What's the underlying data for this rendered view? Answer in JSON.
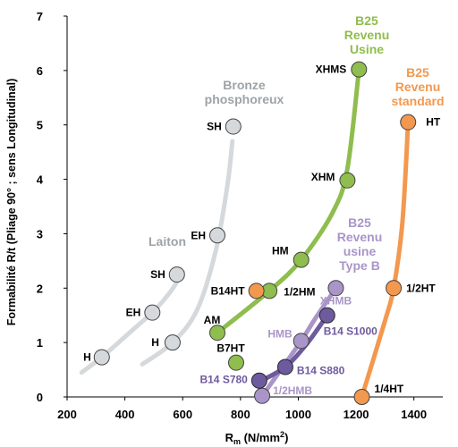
{
  "chart_data": {
    "type": "line",
    "xlabel": "R",
    "xlabel_sub": "m",
    "xlabel_unit_pre": " (N/mm",
    "xlabel_unit_sup": "2",
    "xlabel_unit_post": ")",
    "ylabel": "Formabilité R/t (Pliage 90° ; sens Longitudinal)",
    "xlim": [
      200,
      1500
    ],
    "ylim": [
      0,
      7
    ],
    "xticks": [
      200,
      400,
      600,
      800,
      1000,
      1200,
      1400
    ],
    "yticks": [
      0,
      1,
      2,
      3,
      4,
      5,
      6,
      7
    ],
    "grid": false,
    "colors": {
      "laiton": "#d5d9dc",
      "bronze": "#d5d9dc",
      "usine": "#8fbd4e",
      "standard": "#f3984f",
      "typeB": "#a995c8",
      "dark": "#6e5a9e",
      "grey_label": "#9ea3a7"
    },
    "group_labels": [
      {
        "key": "laiton",
        "lines": [
          "Laiton"
        ],
        "color": "grey_label"
      },
      {
        "key": "bronze",
        "lines": [
          "Bronze",
          "phosphoreux"
        ],
        "color": "grey_label"
      },
      {
        "key": "usine",
        "lines": [
          "B25",
          "Revenu",
          "Usine"
        ],
        "color": "usine"
      },
      {
        "key": "standard",
        "lines": [
          "B25",
          "Revenu",
          "standard"
        ],
        "color": "standard"
      },
      {
        "key": "typeB",
        "lines": [
          "B25",
          "Revenu",
          "usine",
          "Type B"
        ],
        "color": "typeB"
      }
    ],
    "series": [
      {
        "key": "laiton",
        "curve": [
          [
            250,
            0.45
          ],
          [
            320,
            0.73
          ],
          [
            420,
            1.2
          ],
          [
            500,
            1.58
          ],
          [
            560,
            1.95
          ],
          [
            600,
            2.3
          ]
        ],
        "points": [
          {
            "x": 320,
            "y": 0.73,
            "label": "H"
          },
          {
            "x": 495,
            "y": 1.55,
            "label": "EH"
          },
          {
            "x": 580,
            "y": 2.25,
            "label": "SH"
          }
        ]
      },
      {
        "key": "bronze",
        "curve": [
          [
            460,
            0.6
          ],
          [
            565,
            1.0
          ],
          [
            650,
            1.6
          ],
          [
            715,
            2.7
          ],
          [
            755,
            3.9
          ],
          [
            772,
            4.7
          ]
        ],
        "points": [
          {
            "x": 565,
            "y": 1.0,
            "label": "H"
          },
          {
            "x": 720,
            "y": 2.97,
            "label": "EH"
          },
          {
            "x": 775,
            "y": 4.97,
            "label": "SH"
          }
        ]
      },
      {
        "key": "usine",
        "curve": [
          [
            720,
            1.18
          ],
          [
            900,
            1.95
          ],
          [
            1010,
            2.52
          ],
          [
            1120,
            3.4
          ],
          [
            1170,
            4.2
          ],
          [
            1210,
            6.02
          ]
        ],
        "points": [
          {
            "x": 720,
            "y": 1.18,
            "label": "AM"
          },
          {
            "x": 900,
            "y": 1.95,
            "label": "1/2HM"
          },
          {
            "x": 1010,
            "y": 2.52,
            "label": "HM"
          },
          {
            "x": 1170,
            "y": 3.98,
            "label": "XHM"
          },
          {
            "x": 1210,
            "y": 6.02,
            "label": "XHMS"
          }
        ]
      },
      {
        "key": "standard",
        "curve": [
          [
            1220,
            0.0
          ],
          [
            1300,
            1.4
          ],
          [
            1330,
            2.0
          ],
          [
            1360,
            3.2
          ],
          [
            1380,
            5.05
          ]
        ],
        "points": [
          {
            "x": 1220,
            "y": 0.0,
            "label": "1/4HT"
          },
          {
            "x": 1330,
            "y": 2.0,
            "label": "1/2HT"
          },
          {
            "x": 1380,
            "y": 5.05,
            "label": "HT"
          }
        ]
      },
      {
        "key": "typeB",
        "curve": [
          [
            875,
            0.02
          ],
          [
            960,
            0.65
          ],
          [
            1010,
            1.03
          ],
          [
            1060,
            1.45
          ],
          [
            1130,
            2.0
          ]
        ],
        "points": [
          {
            "x": 875,
            "y": 0.02,
            "label": "1/2HMB"
          },
          {
            "x": 1010,
            "y": 1.03,
            "label": "HMB"
          },
          {
            "x": 1130,
            "y": 2.0,
            "label": "XHMB"
          }
        ]
      },
      {
        "key": "dark",
        "curve": [
          [
            865,
            0.28
          ],
          [
            955,
            0.55
          ],
          [
            1030,
            0.98
          ],
          [
            1100,
            1.5
          ]
        ],
        "points": [
          {
            "x": 865,
            "y": 0.3,
            "label": "B14 S780"
          },
          {
            "x": 955,
            "y": 0.55,
            "label": "B14 S880"
          },
          {
            "x": 1100,
            "y": 1.5,
            "label": "B14 S1000"
          }
        ]
      }
    ],
    "standalone_points": [
      {
        "x": 855,
        "y": 1.95,
        "label": "B14HT",
        "color": "standard"
      },
      {
        "x": 785,
        "y": 0.63,
        "label": "B7HT",
        "color": "usine"
      }
    ]
  }
}
